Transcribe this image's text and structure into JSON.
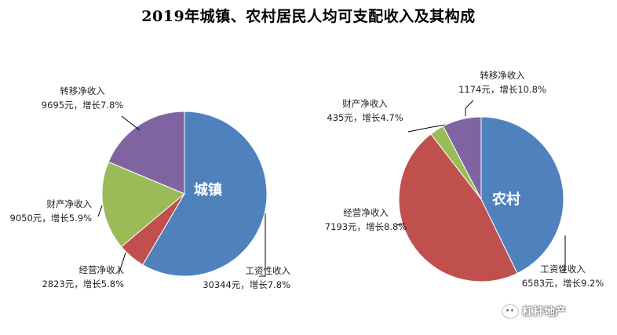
{
  "title": "2019年城镇、农村居民人均可支配收入及其构成",
  "watermark": "杠杆地产",
  "chart_data": [
    {
      "type": "pie",
      "center_label": "城镇",
      "slices": [
        {
          "name": "工资性收入",
          "value": 30344,
          "growth": "增长7.8%",
          "value_text": "30344元",
          "color": "#4f81bd"
        },
        {
          "name": "经营净收入",
          "value": 2823,
          "growth": "增长5.8%",
          "value_text": "2823元",
          "color": "#c0504d"
        },
        {
          "name": "财产净收入",
          "value": 9050,
          "growth": "增长5.9%",
          "value_text": "9050元",
          "color": "#9bbb59"
        },
        {
          "name": "转移净收入",
          "value": 9695,
          "growth": "增长7.8%",
          "value_text": "9695元",
          "color": "#8064a2"
        }
      ]
    },
    {
      "type": "pie",
      "center_label": "农村",
      "slices": [
        {
          "name": "工资性收入",
          "value": 6583,
          "growth": "增长9.2%",
          "value_text": "6583元",
          "color": "#4f81bd"
        },
        {
          "name": "经营净收入",
          "value": 7193,
          "growth": "增长8.8%",
          "value_text": "7193元",
          "color": "#c0504d"
        },
        {
          "name": "财产净收入",
          "value": 435,
          "growth": "增长4.7%",
          "value_text": "435元",
          "color": "#9bbb59"
        },
        {
          "name": "转移净收入",
          "value": 1174,
          "growth": "增长10.8%",
          "value_text": "1174元",
          "color": "#8064a2"
        }
      ]
    }
  ]
}
